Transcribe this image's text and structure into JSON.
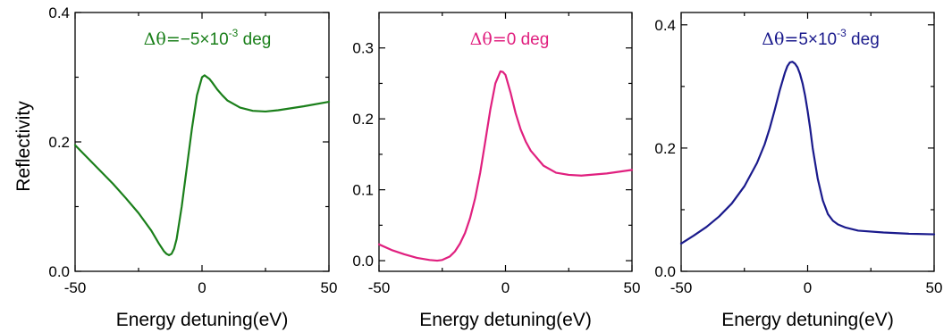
{
  "chart_data": [
    {
      "type": "line",
      "title_parts": [
        {
          "t": "Δθ=",
          "cls": "sym"
        },
        {
          "t": "−5×10",
          "cls": "txt"
        },
        {
          "t": "-3",
          "cls": "sup"
        },
        {
          "t": " deg",
          "cls": "txt"
        }
      ],
      "title_color": "#1a7f1a",
      "xlabel": "Energy detuning(eV)",
      "ylabel": "Reflectivity",
      "xlim": [
        -50,
        50
      ],
      "ylim": [
        0.0,
        0.4
      ],
      "xticks": [
        -50,
        0,
        50
      ],
      "xtick_labels": [
        "-50",
        "0",
        "50"
      ],
      "yticks": [
        0.0,
        0.2,
        0.4
      ],
      "ytick_labels": [
        "0.0",
        "0.2",
        "0.4"
      ],
      "grid": false,
      "series": [
        {
          "color": "#1a7f1a",
          "x": [
            -50,
            -45,
            -40,
            -35,
            -30,
            -25,
            -20,
            -17,
            -15,
            -14,
            -13,
            -12,
            -11,
            -10,
            -8,
            -6,
            -4,
            -2,
            0,
            1,
            2,
            3,
            4,
            6,
            8,
            10,
            15,
            20,
            25,
            30,
            40,
            50
          ],
          "y": [
            0.195,
            0.175,
            0.155,
            0.135,
            0.113,
            0.09,
            0.063,
            0.043,
            0.031,
            0.027,
            0.025,
            0.027,
            0.035,
            0.05,
            0.1,
            0.16,
            0.22,
            0.272,
            0.3,
            0.303,
            0.3,
            0.297,
            0.292,
            0.281,
            0.272,
            0.264,
            0.253,
            0.248,
            0.247,
            0.249,
            0.255,
            0.262
          ]
        }
      ]
    },
    {
      "type": "line",
      "title_parts": [
        {
          "t": "Δθ=",
          "cls": "sym"
        },
        {
          "t": "0 deg",
          "cls": "txt"
        }
      ],
      "title_color": "#e0207f",
      "xlabel": "Energy detuning(eV)",
      "ylabel": "",
      "xlim": [
        -50,
        50
      ],
      "ylim": [
        -0.015,
        0.35
      ],
      "xticks": [
        -50,
        0,
        50
      ],
      "xtick_labels": [
        "-50",
        "0",
        "50"
      ],
      "yticks": [
        0.0,
        0.1,
        0.2,
        0.3
      ],
      "ytick_labels": [
        "0.0",
        "0.1",
        "0.2",
        "0.3"
      ],
      "grid": false,
      "series": [
        {
          "color": "#e0207f",
          "x": [
            -50,
            -45,
            -40,
            -35,
            -30,
            -27,
            -25,
            -22,
            -20,
            -18,
            -16,
            -14,
            -12,
            -10,
            -8,
            -6,
            -4,
            -2,
            -1,
            0,
            2,
            4,
            6,
            8,
            10,
            15,
            20,
            25,
            30,
            40,
            50
          ],
          "y": [
            0.023,
            0.015,
            0.009,
            0.004,
            0.001,
            0.0,
            0.001,
            0.006,
            0.013,
            0.024,
            0.039,
            0.06,
            0.088,
            0.124,
            0.168,
            0.213,
            0.25,
            0.267,
            0.266,
            0.262,
            0.237,
            0.208,
            0.185,
            0.168,
            0.155,
            0.134,
            0.124,
            0.121,
            0.12,
            0.123,
            0.128
          ]
        }
      ]
    },
    {
      "type": "line",
      "title_parts": [
        {
          "t": "Δθ=",
          "cls": "sym"
        },
        {
          "t": "5×10",
          "cls": "txt"
        },
        {
          "t": "-3",
          "cls": "sup"
        },
        {
          "t": " deg",
          "cls": "txt"
        }
      ],
      "title_color": "#1a1a8c",
      "xlabel": "Energy detuning(eV)",
      "ylabel": "",
      "xlim": [
        -50,
        50
      ],
      "ylim": [
        0.0,
        0.42
      ],
      "xticks": [
        -50,
        0,
        50
      ],
      "xtick_labels": [
        "-50",
        "0",
        "50"
      ],
      "yticks": [
        0.0,
        0.2,
        0.4
      ],
      "ytick_labels": [
        "0.0",
        "0.2",
        "0.4"
      ],
      "grid": false,
      "series": [
        {
          "color": "#1a1a8c",
          "x": [
            -50,
            -45,
            -40,
            -35,
            -30,
            -25,
            -20,
            -17,
            -15,
            -13,
            -11,
            -9,
            -8,
            -7,
            -6,
            -5,
            -4,
            -3,
            -2,
            -1,
            0,
            1,
            2,
            4,
            6,
            8,
            10,
            12,
            15,
            20,
            30,
            40,
            50
          ],
          "y": [
            0.045,
            0.058,
            0.072,
            0.089,
            0.11,
            0.138,
            0.176,
            0.206,
            0.232,
            0.262,
            0.294,
            0.322,
            0.333,
            0.339,
            0.34,
            0.337,
            0.331,
            0.32,
            0.305,
            0.285,
            0.26,
            0.232,
            0.2,
            0.15,
            0.115,
            0.093,
            0.082,
            0.076,
            0.071,
            0.066,
            0.063,
            0.061,
            0.06
          ]
        }
      ]
    }
  ]
}
